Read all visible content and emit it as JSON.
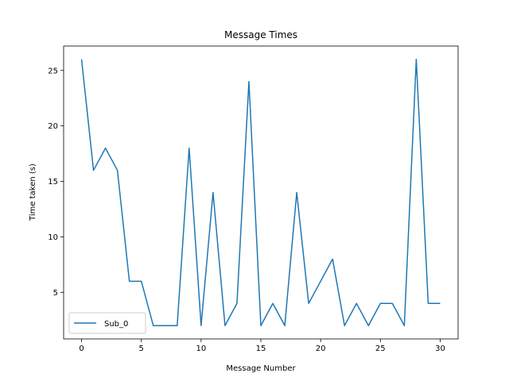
{
  "chart_data": {
    "type": "line",
    "title": "Message Times",
    "xlabel": "Message Number",
    "ylabel": "Time taken (s)",
    "xlim": [
      -1.5,
      31.5
    ],
    "ylim": [
      0.8,
      27.2
    ],
    "xticks": [
      0,
      5,
      10,
      15,
      20,
      25,
      30
    ],
    "yticks": [
      5,
      10,
      15,
      20,
      25
    ],
    "grid": false,
    "legend_position": "lower-left",
    "series": [
      {
        "name": "Sub_0",
        "color": "#1f77b4",
        "x": [
          0,
          1,
          2,
          3,
          4,
          5,
          6,
          7,
          8,
          9,
          10,
          11,
          12,
          13,
          14,
          15,
          16,
          17,
          18,
          19,
          20,
          21,
          22,
          23,
          24,
          25,
          26,
          27,
          28,
          29,
          30
        ],
        "y": [
          26,
          16,
          18,
          16,
          6,
          6,
          2,
          2,
          2,
          18,
          2,
          14,
          2,
          4,
          24,
          2,
          4,
          2,
          14,
          4,
          6,
          8,
          2,
          4,
          2,
          4,
          4,
          2,
          26,
          4,
          4
        ]
      }
    ]
  }
}
